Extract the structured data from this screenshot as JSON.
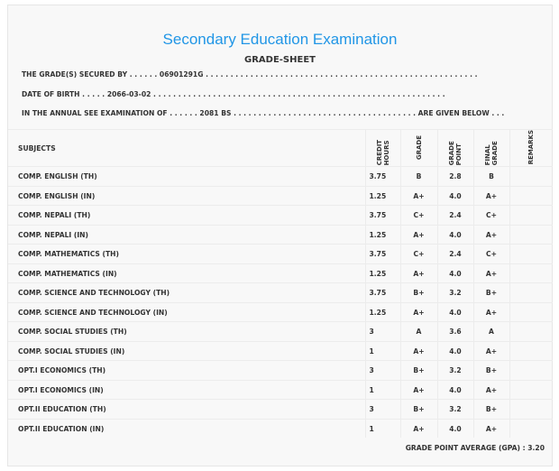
{
  "title": "Secondary Education Examination",
  "subtitle": "GRADE-SHEET",
  "lines": {
    "secured": "THE GRADE(S) SECURED BY . . . . . . 06901291G . . . . . . . . . . . . . . . . . . . . . . . . . . . . . . . . . . . . . . . . . . . . . . . . . . . . . . .",
    "dob": "DATE OF BIRTH . . . . . 2066-03-02 . . . . . . . . . . . . . . . . . . . . . . . . . . . . . . . . . . . . . . . . . . . . . . . . . . . . . . . . . . .",
    "exam": "IN THE ANNUAL SEE EXAMINATION OF . . . . . . 2081 BS . . . . . . . . . . . . . . . . . . . . . . . . . . . . . . . . . . . . . ARE GIVEN BELOW . . ."
  },
  "headers": [
    "SUBJECTS",
    "CREDIT HOURS",
    "GRADE",
    "GRADE POINT",
    "FINAL GRADE",
    "REMARKS"
  ],
  "rows": [
    [
      "COMP. ENGLISH (TH)",
      "3.75",
      "B",
      "2.8",
      "B"
    ],
    [
      "COMP. ENGLISH (IN)",
      "1.25",
      "A+",
      "4.0",
      "A+"
    ],
    [
      "COMP. NEPALI (TH)",
      "3.75",
      "C+",
      "2.4",
      "C+"
    ],
    [
      "COMP. NEPALI (IN)",
      "1.25",
      "A+",
      "4.0",
      "A+"
    ],
    [
      "COMP. MATHEMATICS (TH)",
      "3.75",
      "C+",
      "2.4",
      "C+"
    ],
    [
      "COMP. MATHEMATICS (IN)",
      "1.25",
      "A+",
      "4.0",
      "A+"
    ],
    [
      "COMP. SCIENCE AND TECHNOLOGY (TH)",
      "3.75",
      "B+",
      "3.2",
      "B+"
    ],
    [
      "COMP. SCIENCE AND TECHNOLOGY (IN)",
      "1.25",
      "A+",
      "4.0",
      "A+"
    ],
    [
      "COMP. SOCIAL STUDIES (TH)",
      "3",
      "A",
      "3.6",
      "A"
    ],
    [
      "COMP. SOCIAL STUDIES (IN)",
      "1",
      "A+",
      "4.0",
      "A+"
    ],
    [
      "OPT.I ECONOMICS (TH)",
      "3",
      "B+",
      "3.2",
      "B+"
    ],
    [
      "OPT.I ECONOMICS (IN)",
      "1",
      "A+",
      "4.0",
      "A+"
    ],
    [
      "OPT.II EDUCATION (TH)",
      "3",
      "B+",
      "3.2",
      "B+"
    ],
    [
      "OPT.II EDUCATION (IN)",
      "1",
      "A+",
      "4.0",
      "A+"
    ]
  ],
  "gpa": "GRADE POINT AVERAGE (GPA) : 3.20"
}
